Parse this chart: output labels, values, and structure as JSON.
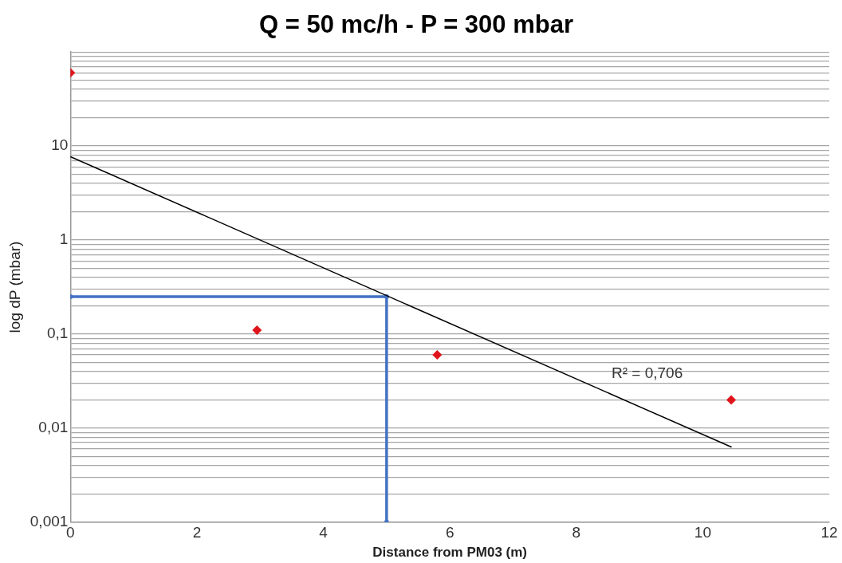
{
  "chart_data": {
    "type": "scatter",
    "title": "Q = 50 mc/h - P = 300 mbar",
    "xlabel": "Distance from PM03 (m)",
    "ylabel": "log dP (mbar)",
    "log": "y",
    "grid": "y",
    "legend": false,
    "xlim": [
      0,
      12
    ],
    "xticks": [
      0,
      2,
      4,
      6,
      8,
      10,
      12
    ],
    "ylim": [
      0.001,
      100
    ],
    "yticks": [
      {
        "value": 0.001,
        "label": "0,001"
      },
      {
        "value": 0.002,
        "label": null
      },
      {
        "value": 0.003,
        "label": null
      },
      {
        "value": 0.004,
        "label": null
      },
      {
        "value": 0.005,
        "label": null
      },
      {
        "value": 0.006,
        "label": null
      },
      {
        "value": 0.007,
        "label": null
      },
      {
        "value": 0.008,
        "label": null
      },
      {
        "value": 0.009,
        "label": null
      },
      {
        "value": 0.01,
        "label": "0,01"
      },
      {
        "value": 0.02,
        "label": null
      },
      {
        "value": 0.03,
        "label": null
      },
      {
        "value": 0.04,
        "label": null
      },
      {
        "value": 0.05,
        "label": null
      },
      {
        "value": 0.06,
        "label": null
      },
      {
        "value": 0.07,
        "label": null
      },
      {
        "value": 0.08,
        "label": null
      },
      {
        "value": 0.09,
        "label": null
      },
      {
        "value": 0.1,
        "label": "0,1"
      },
      {
        "value": 0.2,
        "label": null
      },
      {
        "value": 0.3,
        "label": null
      },
      {
        "value": 0.4,
        "label": null
      },
      {
        "value": 0.5,
        "label": null
      },
      {
        "value": 0.6,
        "label": null
      },
      {
        "value": 0.7,
        "label": null
      },
      {
        "value": 0.8,
        "label": null
      },
      {
        "value": 0.9,
        "label": null
      },
      {
        "value": 1,
        "label": "1"
      },
      {
        "value": 2,
        "label": null
      },
      {
        "value": 3,
        "label": null
      },
      {
        "value": 4,
        "label": null
      },
      {
        "value": 5,
        "label": null
      },
      {
        "value": 6,
        "label": null
      },
      {
        "value": 7,
        "label": null
      },
      {
        "value": 8,
        "label": null
      },
      {
        "value": 9,
        "label": null
      },
      {
        "value": 10,
        "label": "10"
      },
      {
        "value": 20,
        "label": null
      },
      {
        "value": 30,
        "label": null
      },
      {
        "value": 40,
        "label": null
      },
      {
        "value": 50,
        "label": null
      },
      {
        "value": 60,
        "label": null
      },
      {
        "value": 70,
        "label": null
      },
      {
        "value": 80,
        "label": null
      },
      {
        "value": 90,
        "label": null
      },
      {
        "value": 100,
        "label": null
      }
    ],
    "series": [
      {
        "color": "#e0141b",
        "marker": "diamond",
        "x": [
          0,
          2.95,
          5.8,
          10.45
        ],
        "values": [
          60,
          0.11,
          0.06,
          0.02
        ]
      },
      {
        "type": "line",
        "color": "#000000",
        "marker": "none",
        "line_style": "solid",
        "x": [
          0,
          10.45
        ],
        "values": [
          7.7,
          0.0063
        ]
      },
      {
        "type": "line",
        "color": "#4472c4",
        "marker": "circle",
        "line_style": "solid",
        "x": [
          0,
          5,
          5
        ],
        "values": [
          0.25,
          0.25,
          0.001
        ]
      }
    ],
    "annotations": [
      "R² = 0,706"
    ]
  }
}
